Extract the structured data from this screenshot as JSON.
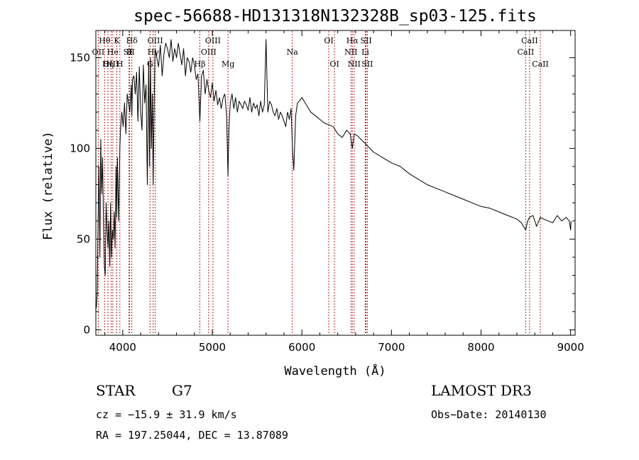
{
  "chart_data": {
    "type": "line",
    "title": "spec-56688-HD131318N132328B_sp03-125.fits",
    "xlabel": "Wavelength (Å)",
    "ylabel": "Flux (relative)",
    "xlim": [
      3700,
      9050
    ],
    "ylim": [
      -3,
      165
    ],
    "xticks": [
      4000,
      5000,
      6000,
      7000,
      8000,
      9000
    ],
    "yticks": [
      0,
      50,
      100,
      150
    ],
    "grid": false,
    "series": [
      {
        "name": "flux",
        "x": [
          3700,
          3705,
          3715,
          3725,
          3735,
          3745,
          3755,
          3765,
          3775,
          3785,
          3795,
          3805,
          3815,
          3825,
          3835,
          3845,
          3855,
          3865,
          3875,
          3885,
          3895,
          3905,
          3915,
          3925,
          3933,
          3940,
          3955,
          3968,
          3975,
          3990,
          4005,
          4020,
          4035,
          4050,
          4065,
          4080,
          4095,
          4102,
          4110,
          4125,
          4140,
          4155,
          4170,
          4185,
          4200,
          4215,
          4230,
          4245,
          4260,
          4275,
          4290,
          4300,
          4310,
          4320,
          4330,
          4340,
          4350,
          4360,
          4380,
          4400,
          4420,
          4440,
          4460,
          4480,
          4500,
          4520,
          4540,
          4560,
          4580,
          4600,
          4620,
          4640,
          4660,
          4680,
          4700,
          4720,
          4740,
          4760,
          4780,
          4800,
          4820,
          4840,
          4861,
          4880,
          4900,
          4920,
          4940,
          4960,
          4980,
          5000,
          5020,
          5040,
          5060,
          5080,
          5100,
          5120,
          5140,
          5160,
          5175,
          5185,
          5200,
          5220,
          5240,
          5260,
          5280,
          5300,
          5320,
          5340,
          5360,
          5380,
          5400,
          5420,
          5440,
          5460,
          5480,
          5500,
          5520,
          5540,
          5560,
          5580,
          5600,
          5620,
          5640,
          5660,
          5680,
          5700,
          5720,
          5740,
          5760,
          5780,
          5800,
          5820,
          5840,
          5860,
          5880,
          5895,
          5910,
          5930,
          5950,
          5970,
          6000,
          6050,
          6100,
          6150,
          6200,
          6250,
          6300,
          6350,
          6400,
          6450,
          6500,
          6540,
          6563,
          6585,
          6620,
          6700,
          6800,
          6900,
          7000,
          7100,
          7200,
          7300,
          7400,
          7500,
          7600,
          7700,
          7800,
          7900,
          8000,
          8100,
          8200,
          8300,
          8400,
          8450,
          8498,
          8520,
          8542,
          8580,
          8620,
          8662,
          8700,
          8750,
          8800,
          8850,
          8900,
          8950,
          8985,
          9000,
          9005
        ],
        "values": [
          14,
          12,
          20,
          60,
          90,
          40,
          105,
          75,
          95,
          60,
          35,
          30,
          70,
          55,
          45,
          60,
          35,
          70,
          40,
          55,
          50,
          65,
          45,
          90,
          62,
          95,
          60,
          100,
          110,
          120,
          112,
          125,
          108,
          130,
          125,
          120,
          135,
          118,
          138,
          140,
          130,
          142,
          115,
          145,
          120,
          110,
          146,
          125,
          135,
          80,
          148,
          90,
          150,
          100,
          130,
          80,
          120,
          155,
          150,
          145,
          157,
          140,
          152,
          158,
          155,
          150,
          160,
          148,
          155,
          150,
          158,
          152,
          146,
          155,
          140,
          150,
          148,
          142,
          150,
          146,
          138,
          141,
          115,
          140,
          143,
          130,
          138,
          132,
          128,
          136,
          126,
          132,
          124,
          128,
          122,
          128,
          130,
          118,
          85,
          110,
          125,
          130,
          122,
          128,
          120,
          126,
          124,
          122,
          126,
          124,
          121,
          128,
          120,
          125,
          122,
          124,
          118,
          126,
          120,
          124,
          160,
          120,
          126,
          124,
          120,
          118,
          122,
          116,
          120,
          118,
          115,
          112,
          120,
          116,
          122,
          100,
          88,
          118,
          125,
          126,
          128,
          124,
          120,
          118,
          116,
          114,
          113,
          112,
          108,
          106,
          110,
          108,
          100,
          108,
          107,
          103,
          98,
          95,
          92,
          90,
          86,
          83,
          80,
          78,
          76,
          74,
          72,
          70,
          68,
          67,
          65,
          63,
          61,
          59,
          55,
          60,
          62,
          63,
          57,
          62,
          61,
          60,
          59,
          63,
          60,
          62,
          60,
          55,
          60
        ],
        "color": "#000000"
      }
    ],
    "annotations": [
      {
        "label": "Hθ",
        "x": 3798,
        "row": 0
      },
      {
        "label": "OII",
        "x": 3727,
        "row": 1
      },
      {
        "label": "OIII",
        "x": 3870,
        "row": 2
      },
      {
        "label": "He",
        "x": 3889,
        "row": 1
      },
      {
        "label": "Hη",
        "x": 3835,
        "row": 2
      },
      {
        "label": "K",
        "x": 3934,
        "row": 0
      },
      {
        "label": "SII",
        "x": 4070,
        "row": 1
      },
      {
        "label": "H",
        "x": 3968,
        "row": 2
      },
      {
        "label": "Hδ",
        "x": 4102,
        "row": 0
      },
      {
        "label": "II",
        "x": 4076,
        "row": 1
      },
      {
        "label": "OIII",
        "x": 4363,
        "row": 0
      },
      {
        "label": "Hγ",
        "x": 4340,
        "row": 1
      },
      {
        "label": "G",
        "x": 4305,
        "row": 2
      },
      {
        "label": "OIII",
        "x": 5007,
        "row": 0
      },
      {
        "label": "OIII",
        "x": 4959,
        "row": 1
      },
      {
        "label": "Hβ",
        "x": 4861,
        "row": 2
      },
      {
        "label": "Mg",
        "x": 5175,
        "row": 2
      },
      {
        "label": "Na",
        "x": 5893,
        "row": 1
      },
      {
        "label": "OI",
        "x": 6300,
        "row": 0
      },
      {
        "label": "OI",
        "x": 6364,
        "row": 2
      },
      {
        "label": "Hα",
        "x": 6563,
        "row": 0
      },
      {
        "label": "SII",
        "x": 6717,
        "row": 0
      },
      {
        "label": "NII",
        "x": 6548,
        "row": 1
      },
      {
        "label": "Li",
        "x": 6708,
        "row": 1
      },
      {
        "label": "NII",
        "x": 6584,
        "row": 2
      },
      {
        "label": "SII",
        "x": 6731,
        "row": 2
      },
      {
        "label": "CaII",
        "x": 8542,
        "row": 0
      },
      {
        "label": "CaII",
        "x": 8498,
        "row": 1
      },
      {
        "label": "CaII",
        "x": 8662,
        "row": 2
      }
    ]
  },
  "info": {
    "class_label": "STAR",
    "subclass": "G7",
    "cz": "cz = −15.9 ± 31.9 km/s",
    "coords": "RA = 197.25044, DEC =  13.87089",
    "survey": "LAMOST DR3",
    "obs_date": "Obs−Date: 20140130"
  },
  "colors": {
    "spectrum": "#000000",
    "line_markers": "#b22222",
    "axes": "#000000"
  }
}
